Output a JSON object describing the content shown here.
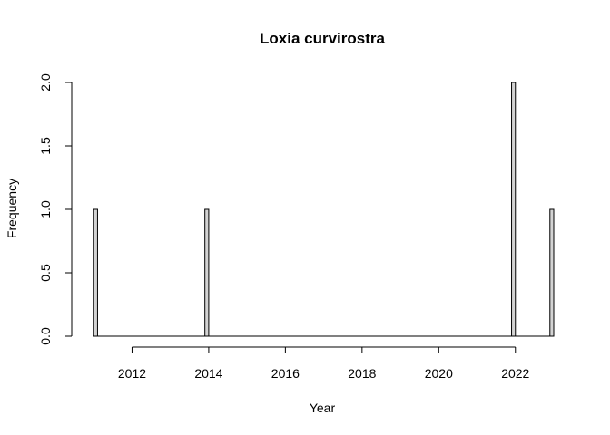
{
  "chart_data": {
    "type": "bar",
    "title": "Loxia curvirostra",
    "xlabel": "Year",
    "ylabel": "Frequency",
    "xlim": [
      2010.9,
      2023.0
    ],
    "ylim": [
      0,
      2.0
    ],
    "x_ticks": [
      2012,
      2014,
      2016,
      2018,
      2020,
      2022
    ],
    "x_tick_labels": [
      "2012",
      "2014",
      "2016",
      "2018",
      "2020",
      "2022"
    ],
    "y_ticks": [
      0,
      0.5,
      1.0,
      1.5,
      2.0
    ],
    "y_tick_labels": [
      "0.0",
      "0.5",
      "1.0",
      "1.5",
      "2.0"
    ],
    "bin_width": 0.1,
    "bars": [
      {
        "x": 2011.0,
        "value": 1
      },
      {
        "x": 2013.9,
        "value": 1
      },
      {
        "x": 2021.9,
        "value": 2
      },
      {
        "x": 2022.9,
        "value": 1
      }
    ],
    "baseline_range": [
      2011.0,
      2023.0
    ],
    "grid": false,
    "legend": "none",
    "colors": {
      "bar_fill": "#d3d3d3",
      "bar_stroke": "#000000"
    }
  }
}
